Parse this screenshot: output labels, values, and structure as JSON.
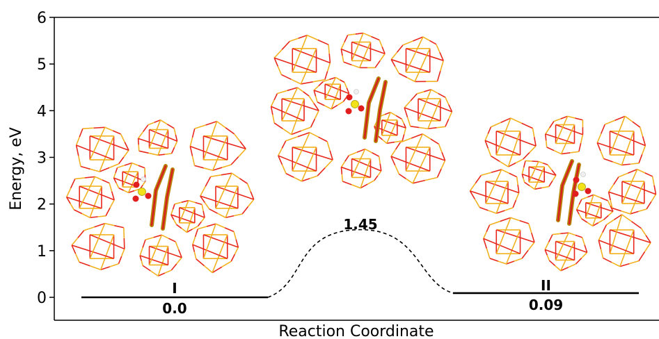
{
  "chart_data": {
    "type": "line",
    "subtype": "energy-profile",
    "title": "",
    "xlabel": "Reaction Coordinate",
    "ylabel": "Energy, eV",
    "ylim": [
      0,
      6
    ],
    "yticks": [
      "0",
      "1",
      "2",
      "3",
      "4",
      "5",
      "6"
    ],
    "grid": false,
    "colors": {
      "level": "#000000",
      "path": "#000000",
      "framework_oxygen": "#e8281c",
      "framework_silicon": "#f2b21f"
    },
    "series": [
      {
        "states": [
          {
            "id": "I",
            "label": "I",
            "energy": 0.0,
            "energy_label": "0.0",
            "kind": "minimum"
          },
          {
            "id": "TS",
            "label": "",
            "energy": 1.45,
            "energy_label": "1.45",
            "kind": "transition-state"
          },
          {
            "id": "II",
            "label": "II",
            "energy": 0.09,
            "energy_label": "0.09",
            "kind": "minimum"
          }
        ]
      }
    ],
    "connectors": [
      {
        "from": "I",
        "to": "TS",
        "style": "dashed"
      },
      {
        "from": "TS",
        "to": "II",
        "style": "dashed"
      }
    ],
    "insets": [
      {
        "state": "I",
        "content": "zeolite framework structure"
      },
      {
        "state": "TS",
        "content": "zeolite framework structure"
      },
      {
        "state": "II",
        "content": "zeolite framework structure"
      }
    ]
  }
}
